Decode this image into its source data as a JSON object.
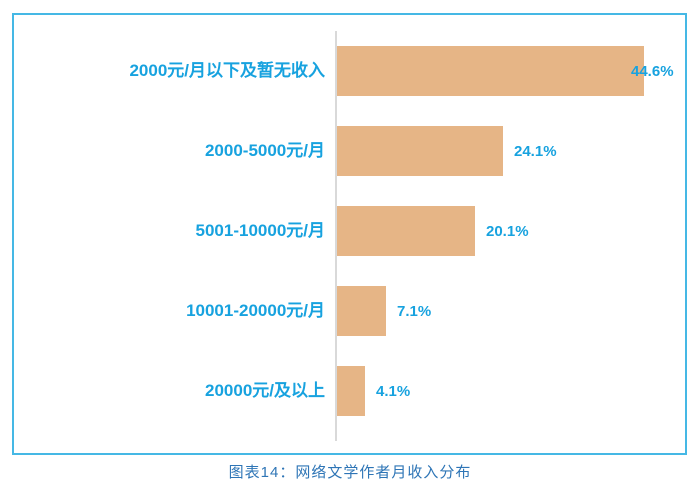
{
  "figure": {
    "caption": "图表14：网络文学作者月收入分布"
  },
  "chart_data": {
    "type": "bar",
    "orientation": "horizontal",
    "title": "图表14：网络文学作者月收入分布",
    "categories": [
      "2000元/月以下及暂无收入",
      "2000-5000元/月",
      "5001-10000元/月",
      "10001-20000元/月",
      "20000元/及以上"
    ],
    "values": [
      44.6,
      24.1,
      20.1,
      7.1,
      4.1
    ],
    "value_labels": [
      "44.6%",
      "24.1%",
      "20.1%",
      "7.1%",
      "4.1%"
    ],
    "xlabel": "",
    "ylabel": "",
    "xlim": [
      0,
      46
    ],
    "grid": false,
    "legend": false,
    "layout_hints": {
      "value_labels_position": "right-of-bar",
      "category_labels_position": "left-of-axis",
      "axis_line": "vertical-baseline"
    },
    "colors": {
      "bar_fill": "#E6B586",
      "category_text": "#17A2DF",
      "value_text": "#17A2DF",
      "axis_line": "#D9D9D9",
      "frame_border": "#45B8E5",
      "caption_text": "#2E75B6",
      "background": "#FFFFFF"
    }
  }
}
